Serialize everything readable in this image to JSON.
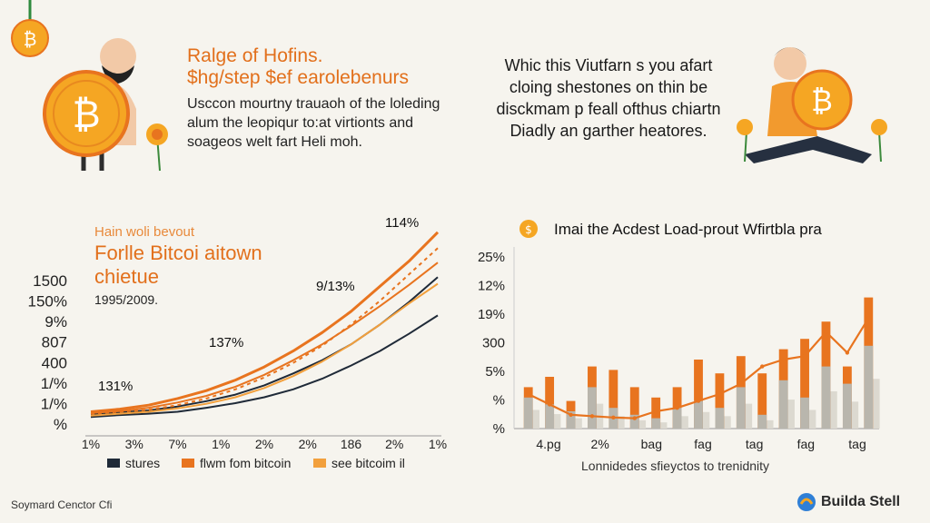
{
  "header_left": {
    "title_lines": [
      "Ralge of Hofins.",
      "$hg/step $ef earolebenurs"
    ],
    "body_lines": [
      "Usccon mourtny trauaoh of the loleding",
      "alum the leopiqur to:at virtionts and",
      "soageos welt fart Heli moh."
    ]
  },
  "header_right": {
    "lines": [
      "Whic this Viutfarn s you afart",
      "cloing shestones on thin be",
      "disckmam p feall ofthus chiartn",
      "Diadly an garther heatores."
    ]
  },
  "left_chart_text": {
    "subtitle": "Hain woli bevout",
    "title_lines": [
      "Forlle Bitcoi aitown",
      "chietue"
    ],
    "years": "1995/2009."
  },
  "right_chart_text": {
    "title": "Imai the Acdest Load-prout Wfirtbla pra"
  },
  "footer": {
    "left": "Soymard Cenctor Cfi",
    "brand": "Builda Stell"
  },
  "colors": {
    "orange": "#e8741f",
    "light_orange": "#f2a03d",
    "navy": "#1f2a38",
    "gray_bar": "#b9b6ad",
    "light_gray": "#dcd9d0",
    "bitcoin": "#f39a1e"
  },
  "icons": [
    "bitcoin-coin-icon",
    "flower-icon",
    "person-illustration",
    "coin-badge-icon",
    "brand-logo-icon"
  ],
  "chart_data": [
    {
      "type": "line",
      "title": "Forlle Bitcoi aitown chietue",
      "yticks": [
        "1500",
        "150%",
        "9%",
        "807",
        "400",
        "1/%",
        "1/%",
        "%"
      ],
      "xticks": [
        "1%",
        "3%",
        "7%",
        "1%",
        "2%",
        "2%",
        "186",
        "2%",
        "1%"
      ],
      "annotations": [
        "114%",
        "9/13%",
        "137%",
        "131%"
      ],
      "ylim": [
        0,
        1500
      ],
      "x": [
        0,
        1,
        2,
        3,
        4,
        5,
        6,
        7,
        8,
        9,
        10,
        11,
        12
      ],
      "series": [
        {
          "name": "stures",
          "color": "#1f2a38",
          "values": [
            60,
            75,
            85,
            100,
            130,
            165,
            210,
            270,
            350,
            450,
            560,
            690,
            830
          ]
        },
        {
          "name": "",
          "color": "#1f2a38",
          "values": [
            80,
            95,
            110,
            140,
            180,
            230,
            300,
            390,
            490,
            610,
            760,
            930,
            1120
          ]
        },
        {
          "name": "flwm fom bitcoin",
          "color": "#e8741f",
          "values": [
            100,
            120,
            150,
            200,
            260,
            340,
            440,
            560,
            700,
            860,
            1050,
            1240,
            1460
          ]
        },
        {
          "name": "",
          "color": "#e8741f",
          "values": [
            90,
            105,
            130,
            170,
            220,
            290,
            380,
            490,
            610,
            750,
            900,
            1060,
            1230
          ]
        },
        {
          "name": "see bitcoim il",
          "color": "#f2a03d",
          "values": [
            70,
            85,
            100,
            125,
            160,
            210,
            280,
            370,
            480,
            610,
            760,
            920,
            1070
          ]
        },
        {
          "name": "",
          "color": "#e8741f",
          "dashed": true,
          "values": [
            85,
            100,
            115,
            150,
            200,
            270,
            360,
            470,
            600,
            760,
            940,
            1140,
            1340
          ]
        }
      ]
    },
    {
      "type": "bar",
      "title": "Imai the Acdest Load-prout Wfirtbla pra",
      "xlabel": "Lonnidedes sfieyctos to trenidnity",
      "yticks": [
        "25%",
        "12%",
        "19%",
        "300",
        "5%",
        "%",
        "%"
      ],
      "xticks": [
        "4.pg",
        "2%",
        "bag",
        "fag",
        "tag",
        "fag",
        "tag"
      ],
      "ylim": [
        0,
        25
      ],
      "categories": [
        "1",
        "2",
        "3",
        "4",
        "5",
        "6",
        "7",
        "8",
        "9",
        "10",
        "11",
        "12",
        "13",
        "14",
        "15",
        "16",
        "17"
      ],
      "series": [
        {
          "name": "orange",
          "color": "#e8741f",
          "values": [
            6,
            7.5,
            4,
            9,
            8.5,
            6,
            4.5,
            6,
            10,
            8,
            10.5,
            8,
            11.5,
            13,
            15.5,
            9,
            19
          ]
        },
        {
          "name": "gray",
          "color": "#b9b6ad",
          "values": [
            4.5,
            3.5,
            2.5,
            6,
            3,
            2,
            1.5,
            3,
            4,
            3,
            6,
            2,
            7,
            4.5,
            9,
            6.5,
            12
          ]
        },
        {
          "name": "trend",
          "color": "#e8741f",
          "values": [
            5,
            3.5,
            2,
            1.8,
            1.6,
            1.5,
            2.5,
            3,
            4,
            5,
            6.5,
            9,
            10,
            10.5,
            14,
            11,
            16
          ]
        }
      ]
    }
  ]
}
